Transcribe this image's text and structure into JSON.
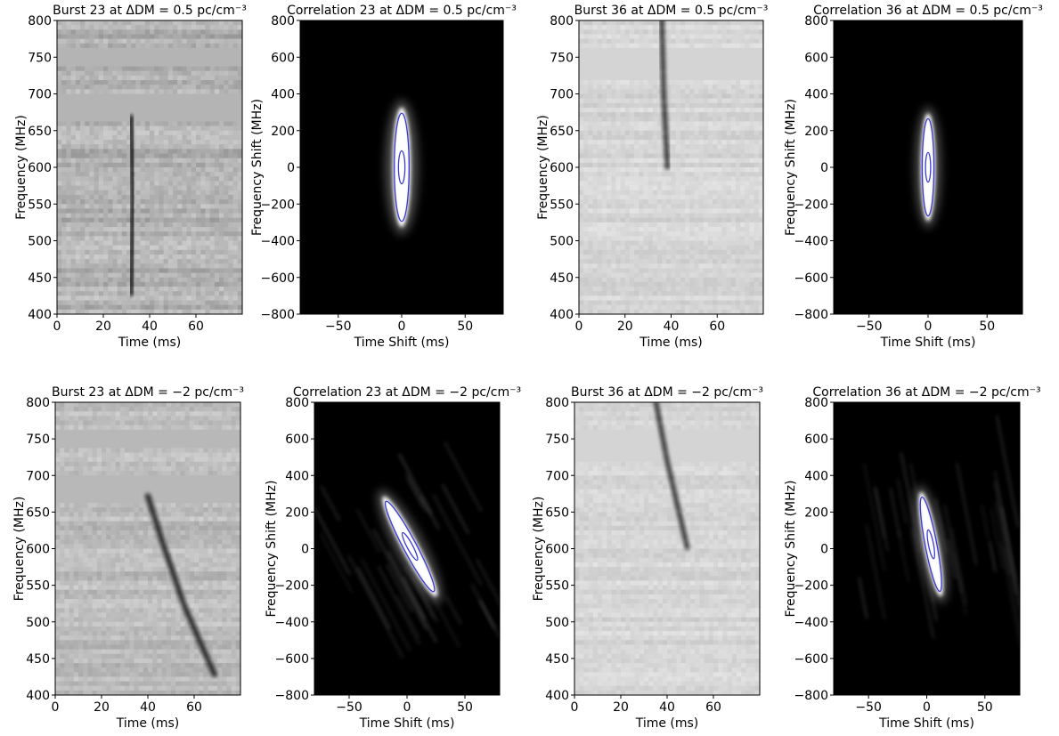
{
  "chart_data": [
    {
      "type": "heatmap",
      "colormap": "gray",
      "title": "Burst 23 at ΔDM = 0.5 pc/cm⁻³",
      "xlabel": "Time (ms)",
      "ylabel": "Frequency (MHz)",
      "xlim": [
        0,
        80
      ],
      "ylim": [
        400,
        800
      ],
      "xticks": [
        0,
        20,
        40,
        60
      ],
      "yticks": [
        400,
        450,
        500,
        550,
        600,
        650,
        700,
        750,
        800
      ]
    },
    {
      "type": "heatmap",
      "colormap": "gray",
      "contour_color": "#3a3ad8",
      "title": "Correlation 23 at ΔDM = 0.5 pc/cm⁻³",
      "xlabel": "Time Shift (ms)",
      "ylabel": "Frequency Shift (MHz)",
      "xlim": [
        -80,
        80
      ],
      "ylim": [
        -800,
        800
      ],
      "xticks": [
        {
          "value": -50,
          "label": "−50"
        },
        0,
        50
      ],
      "yticks": [
        {
          "value": -800,
          "label": "−800"
        },
        {
          "value": -600,
          "label": "−600"
        },
        {
          "value": -400,
          "label": "−400"
        },
        {
          "value": -200,
          "label": "−200"
        },
        0,
        200,
        400,
        600,
        800
      ]
    },
    {
      "type": "heatmap",
      "colormap": "gray",
      "title": "Burst 36 at ΔDM = 0.5 pc/cm⁻³",
      "xlabel": "Time (ms)",
      "ylabel": "Frequency (MHz)",
      "xlim": [
        0,
        80
      ],
      "ylim": [
        400,
        800
      ],
      "xticks": [
        0,
        20,
        40,
        60
      ],
      "yticks": [
        400,
        450,
        500,
        550,
        600,
        650,
        700,
        750,
        800
      ]
    },
    {
      "type": "heatmap",
      "colormap": "gray",
      "contour_color": "#3a3ad8",
      "title": "Correlation 36 at ΔDM = 0.5 pc/cm⁻³",
      "xlabel": "Time Shift (ms)",
      "ylabel": "Frequency Shift (MHz)",
      "xlim": [
        -80,
        80
      ],
      "ylim": [
        -800,
        800
      ],
      "xticks": [
        {
          "value": -50,
          "label": "−50"
        },
        0,
        50
      ],
      "yticks": [
        {
          "value": -800,
          "label": "−800"
        },
        {
          "value": -600,
          "label": "−600"
        },
        {
          "value": -400,
          "label": "−400"
        },
        {
          "value": -200,
          "label": "−200"
        },
        0,
        200,
        400,
        600,
        800
      ]
    },
    {
      "type": "heatmap",
      "colormap": "gray",
      "title": "Burst 23 at ΔDM = −2 pc/cm⁻³",
      "xlabel": "Time (ms)",
      "ylabel": "Frequency (MHz)",
      "xlim": [
        0,
        80
      ],
      "ylim": [
        400,
        800
      ],
      "xticks": [
        0,
        20,
        40,
        60
      ],
      "yticks": [
        400,
        450,
        500,
        550,
        600,
        650,
        700,
        750,
        800
      ]
    },
    {
      "type": "heatmap",
      "colormap": "gray",
      "contour_color": "#3a3ad8",
      "title": "Correlation 23 at ΔDM = −2 pc/cm⁻³",
      "xlabel": "Time Shift (ms)",
      "ylabel": "Frequency Shift (MHz)",
      "xlim": [
        -80,
        80
      ],
      "ylim": [
        -800,
        800
      ],
      "xticks": [
        {
          "value": -50,
          "label": "−50"
        },
        0,
        50
      ],
      "yticks": [
        {
          "value": -800,
          "label": "−800"
        },
        {
          "value": -600,
          "label": "−600"
        },
        {
          "value": -400,
          "label": "−400"
        },
        {
          "value": -200,
          "label": "−200"
        },
        0,
        200,
        400,
        600,
        800
      ]
    },
    {
      "type": "heatmap",
      "colormap": "gray",
      "title": "Burst 36 at ΔDM = −2 pc/cm⁻³",
      "xlabel": "Time (ms)",
      "ylabel": "Frequency (MHz)",
      "xlim": [
        0,
        80
      ],
      "ylim": [
        400,
        800
      ],
      "xticks": [
        0,
        20,
        40,
        60
      ],
      "yticks": [
        400,
        450,
        500,
        550,
        600,
        650,
        700,
        750,
        800
      ]
    },
    {
      "type": "heatmap",
      "colormap": "gray",
      "contour_color": "#3a3ad8",
      "title": "Correlation 36 at ΔDM = −2 pc/cm⁻³",
      "xlabel": "Time Shift (ms)",
      "ylabel": "Frequency Shift (MHz)",
      "xlim": [
        -80,
        80
      ],
      "ylim": [
        -800,
        800
      ],
      "xticks": [
        {
          "value": -50,
          "label": "−50"
        },
        0,
        50
      ],
      "yticks": [
        {
          "value": -800,
          "label": "−800"
        },
        {
          "value": -600,
          "label": "−600"
        },
        {
          "value": -400,
          "label": "−400"
        },
        {
          "value": -200,
          "label": "−200"
        },
        0,
        200,
        400,
        600,
        800
      ]
    }
  ]
}
